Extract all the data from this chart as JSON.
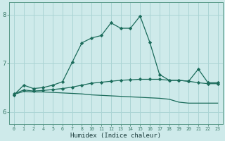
{
  "xlabel": "Humidex (Indice chaleur)",
  "bg_color": "#ceeaea",
  "grid_color": "#aad4d4",
  "line_color": "#1a6b5a",
  "x_positions": [
    0,
    1,
    2,
    4,
    5,
    6,
    7,
    8,
    10,
    11,
    12,
    13,
    14,
    15,
    16,
    17,
    18,
    19,
    20,
    21,
    22,
    23
  ],
  "x_labels": [
    "0",
    "1",
    "2",
    "4",
    "5",
    "6",
    "7",
    "8",
    "10",
    "11",
    "12",
    "13",
    "14",
    "15",
    "16",
    "17",
    "18",
    "19",
    "20",
    "21",
    "22",
    "23"
  ],
  "ylim": [
    5.75,
    8.25
  ],
  "yticks": [
    6,
    7,
    8
  ],
  "series1_x": [
    0,
    1,
    2,
    4,
    5,
    6,
    7,
    8,
    10,
    11,
    12,
    13,
    14,
    15,
    16,
    17,
    18,
    19,
    20,
    21,
    22,
    23
  ],
  "series1_y": [
    6.35,
    6.55,
    6.48,
    6.5,
    6.55,
    6.62,
    7.02,
    7.42,
    7.52,
    7.57,
    7.83,
    7.72,
    7.72,
    7.97,
    7.43,
    6.77,
    6.65,
    6.65,
    6.63,
    6.88,
    6.6,
    6.6
  ],
  "series2_x": [
    0,
    1,
    2,
    4,
    5,
    6,
    7,
    8,
    10,
    11,
    12,
    13,
    14,
    15,
    16,
    17,
    18,
    19,
    20,
    21,
    22,
    23
  ],
  "series2_y": [
    6.37,
    6.45,
    6.43,
    6.44,
    6.46,
    6.48,
    6.51,
    6.55,
    6.59,
    6.61,
    6.63,
    6.65,
    6.66,
    6.67,
    6.67,
    6.67,
    6.65,
    6.65,
    6.63,
    6.6,
    6.58,
    6.58
  ],
  "series3_x": [
    0,
    1,
    2,
    4,
    5,
    6,
    7,
    8,
    10,
    11,
    12,
    13,
    14,
    15,
    16,
    17,
    18,
    19,
    20,
    21,
    22,
    23
  ],
  "series3_y": [
    6.36,
    6.42,
    6.41,
    6.41,
    6.4,
    6.39,
    6.38,
    6.37,
    6.35,
    6.34,
    6.33,
    6.32,
    6.31,
    6.3,
    6.29,
    6.28,
    6.26,
    6.2,
    6.18,
    6.18,
    6.18,
    6.18
  ]
}
